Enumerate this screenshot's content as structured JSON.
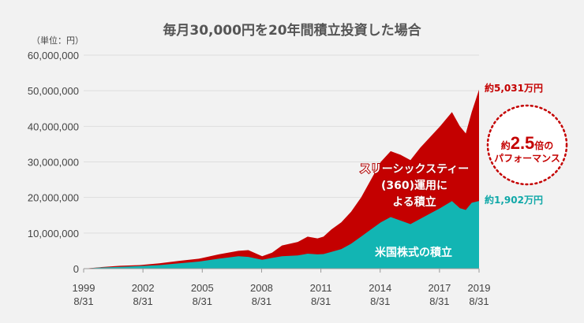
{
  "title": "毎月30,000円を20年間積立投資した場合",
  "unit": "（単位：円）",
  "colors": {
    "total": "#c40000",
    "base": "#12b5b3",
    "badge": "#c40000",
    "grid": "#dddddd"
  },
  "chart_data": {
    "type": "area",
    "ylim": [
      0,
      60000000
    ],
    "yticks": [
      "60,000,000",
      "50,000,000",
      "40,000,000",
      "30,000,000",
      "20,000,000",
      "10,000,000",
      "0"
    ],
    "ytick_values": [
      60000000,
      50000000,
      40000000,
      30000000,
      20000000,
      10000000,
      0
    ],
    "xlim": [
      1999.67,
      2019.67
    ],
    "xticks": [
      {
        "value": 1999.67,
        "line1": "1999",
        "line2": "8/31"
      },
      {
        "value": 2002.67,
        "line1": "2002",
        "line2": "8/31"
      },
      {
        "value": 2005.67,
        "line1": "2005",
        "line2": "8/31"
      },
      {
        "value": 2008.67,
        "line1": "2008",
        "line2": "8/31"
      },
      {
        "value": 2011.67,
        "line1": "2011",
        "line2": "8/31"
      },
      {
        "value": 2014.67,
        "line1": "2014",
        "line2": "8/31"
      },
      {
        "value": 2017.67,
        "line1": "2017",
        "line2": "8/31"
      },
      {
        "value": 2019.67,
        "line1": "2019",
        "line2": "8/31"
      }
    ],
    "grid": true,
    "x": [
      1999.67,
      2000.5,
      2001.5,
      2002.5,
      2003.5,
      2004.5,
      2005.5,
      2006.5,
      2007.5,
      2008.0,
      2008.7,
      2009.2,
      2009.7,
      2010.5,
      2011.0,
      2011.5,
      2011.8,
      2012.2,
      2012.7,
      2013.2,
      2013.7,
      2014.2,
      2014.7,
      2015.2,
      2015.7,
      2016.2,
      2016.7,
      2017.2,
      2017.7,
      2018.0,
      2018.3,
      2018.7,
      2019.0,
      2019.3,
      2019.67
    ],
    "series": [
      {
        "name": "スリーシックスティー(360)運用による積立",
        "values": [
          0,
          400000,
          800000,
          1000000,
          1500000,
          2200000,
          2800000,
          4000000,
          5000000,
          5200000,
          3500000,
          4500000,
          6500000,
          7500000,
          9000000,
          8500000,
          9000000,
          11000000,
          13000000,
          16000000,
          20000000,
          25000000,
          30000000,
          33000000,
          32000000,
          30500000,
          34000000,
          37000000,
          40000000,
          42000000,
          44000000,
          40000000,
          38000000,
          44000000,
          50310000
        ]
      },
      {
        "name": "米国株式の積立",
        "values": [
          0,
          300000,
          500000,
          700000,
          1000000,
          1500000,
          2000000,
          2800000,
          3500000,
          3300000,
          2500000,
          3000000,
          3500000,
          3700000,
          4200000,
          4000000,
          4100000,
          4700000,
          5500000,
          7000000,
          9000000,
          11000000,
          13000000,
          14500000,
          13500000,
          12500000,
          14000000,
          15500000,
          17000000,
          18000000,
          19000000,
          17000000,
          16500000,
          18500000,
          19020000
        ]
      }
    ],
    "end_labels": {
      "total": "約5,031万円",
      "base": "約1,902万円"
    },
    "series_labels": {
      "total": [
        "スリーシックスティー",
        "(360)運用に",
        "よる積立"
      ],
      "base": "米国株式の積立"
    }
  },
  "badge": {
    "line1_prefix": "約",
    "multiplier": "2.5",
    "line1_suffix": "倍の",
    "line2": "パフォーマンス"
  }
}
